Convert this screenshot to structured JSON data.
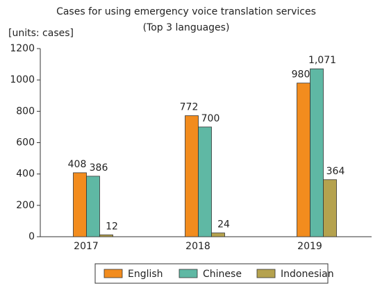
{
  "chart_data": {
    "type": "bar",
    "title": "Cases for using emergency voice translation services",
    "subtitle": "(Top 3 languages)",
    "y_axis_label": "[units: cases]",
    "categories": [
      "2017",
      "2018",
      "2019"
    ],
    "series": [
      {
        "name": "English",
        "color": "#f28c1e",
        "values": [
          408,
          772,
          980
        ],
        "value_labels": [
          "408",
          "772",
          "980"
        ]
      },
      {
        "name": "Chinese",
        "color": "#5fb8a4",
        "values": [
          386,
          700,
          1071
        ],
        "value_labels": [
          "386",
          "700",
          "1,071"
        ]
      },
      {
        "name": "Indonesian",
        "color": "#b5a24e",
        "values": [
          12,
          24,
          364
        ],
        "value_labels": [
          "12",
          "24",
          "364"
        ]
      }
    ],
    "ylim": [
      0,
      1200
    ],
    "yticks": [
      0,
      200,
      400,
      600,
      800,
      1000,
      1200
    ],
    "grid": false,
    "legend": "bottom"
  }
}
